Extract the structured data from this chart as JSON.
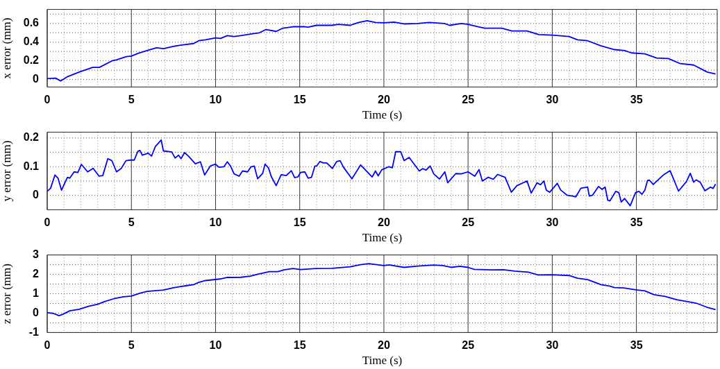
{
  "chart_data": [
    {
      "type": "line",
      "xlabel": "Time (s)",
      "ylabel": "x error (mm)",
      "color": "#0000ff",
      "grid": true,
      "xlim": [
        0,
        39.8
      ],
      "ylim": [
        -0.08,
        0.75
      ],
      "xticks": [
        0,
        {
          "value": 1,
          "label": null
        },
        {
          "value": 2,
          "label": null
        },
        {
          "value": 3,
          "label": null
        },
        {
          "value": 4,
          "label": null
        },
        5,
        {
          "value": 6,
          "label": null
        },
        {
          "value": 7,
          "label": null
        },
        {
          "value": 8,
          "label": null
        },
        {
          "value": 9,
          "label": null
        },
        10,
        {
          "value": 11,
          "label": null
        },
        {
          "value": 12,
          "label": null
        },
        {
          "value": 13,
          "label": null
        },
        {
          "value": 14,
          "label": null
        },
        15,
        {
          "value": 16,
          "label": null
        },
        {
          "value": 17,
          "label": null
        },
        {
          "value": 18,
          "label": null
        },
        {
          "value": 19,
          "label": null
        },
        20,
        {
          "value": 21,
          "label": null
        },
        {
          "value": 22,
          "label": null
        },
        {
          "value": 23,
          "label": null
        },
        {
          "value": 24,
          "label": null
        },
        25,
        {
          "value": 26,
          "label": null
        },
        {
          "value": 27,
          "label": null
        },
        {
          "value": 28,
          "label": null
        },
        {
          "value": 29,
          "label": null
        },
        30,
        {
          "value": 31,
          "label": null
        },
        {
          "value": 32,
          "label": null
        },
        {
          "value": 33,
          "label": null
        },
        {
          "value": 34,
          "label": null
        },
        35,
        {
          "value": 36,
          "label": null
        },
        {
          "value": 37,
          "label": null
        },
        {
          "value": 38,
          "label": null
        },
        {
          "value": 39,
          "label": null
        }
      ],
      "yticks": [
        0,
        {
          "value": 0.1,
          "label": null
        },
        0.2,
        {
          "value": 0.3,
          "label": null
        },
        0.4,
        {
          "value": 0.5,
          "label": null
        },
        0.6,
        {
          "value": 0.7,
          "label": null
        }
      ],
      "x": [
        0,
        0.5,
        0.8,
        1.2,
        1.9,
        2.7,
        3.1,
        3.85,
        4.1,
        4.7,
        5,
        5.4,
        6.1,
        6.5,
        6.9,
        7.5,
        8,
        8.7,
        9,
        9.4,
        10,
        10.3,
        10.7,
        11.1,
        11.5,
        12.2,
        12.6,
        13,
        13.6,
        14,
        14.6,
        15.3,
        15.5,
        16,
        16.9,
        17.3,
        18,
        18.5,
        19,
        19.5,
        20,
        20.6,
        21.2,
        22,
        22.7,
        23.6,
        23.9,
        24.6,
        25,
        25.6,
        26,
        27,
        27.6,
        28.5,
        29.2,
        30,
        31,
        31.5,
        32.1,
        32.9,
        33.7,
        34.3,
        34.7,
        35.5,
        36.2,
        36.9,
        37.6,
        38.4,
        39.2,
        39.7
      ],
      "values": [
        0.01,
        0.015,
        -0.015,
        0.03,
        0.08,
        0.13,
        0.13,
        0.2,
        0.21,
        0.245,
        0.25,
        0.28,
        0.32,
        0.34,
        0.33,
        0.355,
        0.37,
        0.385,
        0.415,
        0.425,
        0.445,
        0.44,
        0.47,
        0.46,
        0.47,
        0.49,
        0.5,
        0.535,
        0.515,
        0.55,
        0.565,
        0.565,
        0.56,
        0.58,
        0.58,
        0.59,
        0.58,
        0.61,
        0.63,
        0.61,
        0.607,
        0.615,
        0.595,
        0.6,
        0.61,
        0.6,
        0.58,
        0.6,
        0.59,
        0.565,
        0.55,
        0.55,
        0.52,
        0.52,
        0.48,
        0.475,
        0.46,
        0.425,
        0.415,
        0.36,
        0.32,
        0.31,
        0.285,
        0.275,
        0.23,
        0.225,
        0.17,
        0.155,
        0.08,
        0.06
      ]
    },
    {
      "type": "line",
      "xlabel": "Time (s)",
      "ylabel": "y error (mm)",
      "color": "#0000ff",
      "grid": true,
      "xlim": [
        0,
        39.8
      ],
      "ylim": [
        -0.05,
        0.22
      ],
      "xticks": [
        0,
        {
          "value": 1,
          "label": null
        },
        {
          "value": 2,
          "label": null
        },
        {
          "value": 3,
          "label": null
        },
        {
          "value": 4,
          "label": null
        },
        5,
        {
          "value": 6,
          "label": null
        },
        {
          "value": 7,
          "label": null
        },
        {
          "value": 8,
          "label": null
        },
        {
          "value": 9,
          "label": null
        },
        10,
        {
          "value": 11,
          "label": null
        },
        {
          "value": 12,
          "label": null
        },
        {
          "value": 13,
          "label": null
        },
        {
          "value": 14,
          "label": null
        },
        15,
        {
          "value": 16,
          "label": null
        },
        {
          "value": 17,
          "label": null
        },
        {
          "value": 18,
          "label": null
        },
        {
          "value": 19,
          "label": null
        },
        20,
        {
          "value": 21,
          "label": null
        },
        {
          "value": 22,
          "label": null
        },
        {
          "value": 23,
          "label": null
        },
        {
          "value": 24,
          "label": null
        },
        25,
        {
          "value": 26,
          "label": null
        },
        {
          "value": 27,
          "label": null
        },
        {
          "value": 28,
          "label": null
        },
        {
          "value": 29,
          "label": null
        },
        30,
        {
          "value": 31,
          "label": null
        },
        {
          "value": 32,
          "label": null
        },
        {
          "value": 33,
          "label": null
        },
        {
          "value": 34,
          "label": null
        },
        35,
        {
          "value": 36,
          "label": null
        },
        {
          "value": 37,
          "label": null
        },
        {
          "value": 38,
          "label": null
        },
        {
          "value": 39,
          "label": null
        }
      ],
      "yticks": [
        0,
        {
          "value": 0.05,
          "label": null
        },
        0.1,
        {
          "value": 0.15,
          "label": null
        },
        0.2
      ],
      "x": [
        0,
        0.2,
        0.46,
        0.64,
        0.85,
        1.2,
        1.34,
        1.6,
        1.82,
        2.03,
        2.4,
        2.73,
        3.08,
        3.3,
        3.6,
        3.84,
        4.12,
        4.4,
        4.68,
        4.96,
        5.17,
        5.38,
        5.5,
        5.65,
        6,
        6.2,
        6.42,
        6.77,
        6.9,
        7.4,
        7.6,
        7.8,
        7.95,
        8.16,
        8.4,
        8.8,
        9.1,
        9.35,
        9.7,
        10,
        10.2,
        10.5,
        10.7,
        10.9,
        11.1,
        11.4,
        11.6,
        11.9,
        12.1,
        12.3,
        12.5,
        12.8,
        12.94,
        13.15,
        13.3,
        13.6,
        13.9,
        14.2,
        14.5,
        14.7,
        14.9,
        15.05,
        15.3,
        15.5,
        15.7,
        15.9,
        16,
        16.2,
        16.4,
        16.6,
        16.94,
        17.2,
        17.4,
        17.6,
        18.1,
        18.62,
        19.3,
        19.5,
        19.66,
        19.87,
        20.3,
        20.5,
        20.7,
        21,
        21.2,
        21.5,
        22.1,
        22.3,
        22.5,
        22.75,
        22.96,
        23.3,
        23.62,
        23.79,
        24.27,
        24.6,
        25,
        25.4,
        25.65,
        25.85,
        26.2,
        26.5,
        26.75,
        27.2,
        27.57,
        27.9,
        28.5,
        28.75,
        29.1,
        29.3,
        29.5,
        29.65,
        29.85,
        30.3,
        30.5,
        30.87,
        31.2,
        31.4,
        31.7,
        32.1,
        32.2,
        32.4,
        32.75,
        32.96,
        33.14,
        33.3,
        33.43,
        33.77,
        33.95,
        34.1,
        34.3,
        34.63,
        34.95,
        35.15,
        35.33,
        35.5,
        35.66,
        35.77,
        36,
        36.6,
        37,
        37.5,
        37.97,
        38.2,
        38.4,
        38.55,
        38.8,
        39.07,
        39.4,
        39.55,
        39.7
      ],
      "values": [
        0.014,
        0.025,
        0.071,
        0.06,
        0.018,
        0.063,
        0.06,
        0.082,
        0.08,
        0.108,
        0.082,
        0.094,
        0.067,
        0.069,
        0.128,
        0.121,
        0.082,
        0.094,
        0.121,
        0.123,
        0.123,
        0.153,
        0.157,
        0.14,
        0.147,
        0.137,
        0.17,
        0.193,
        0.155,
        0.151,
        0.13,
        0.14,
        0.128,
        0.149,
        0.136,
        0.11,
        0.117,
        0.071,
        0.103,
        0.109,
        0.098,
        0.1,
        0.117,
        0.101,
        0.075,
        0.067,
        0.085,
        0.082,
        0.099,
        0.102,
        0.058,
        0.077,
        0.109,
        0.095,
        0.067,
        0.034,
        0.072,
        0.069,
        0.086,
        0.062,
        0.065,
        0.08,
        0.082,
        0.06,
        0.063,
        0.102,
        0.102,
        0.118,
        0.113,
        0.113,
        0.094,
        0.118,
        0.121,
        0.098,
        0.058,
        0.106,
        0.064,
        0.085,
        0.068,
        0.089,
        0.1,
        0.096,
        0.152,
        0.152,
        0.121,
        0.132,
        0.085,
        0.093,
        0.088,
        0.102,
        0.075,
        0.057,
        0.082,
        0.044,
        0.076,
        0.075,
        0.082,
        0.067,
        0.09,
        0.05,
        0.063,
        0.056,
        0.073,
        0.063,
        0.011,
        0.034,
        0.05,
        0.008,
        0.044,
        0.037,
        0.05,
        0.018,
        0.011,
        0.042,
        0.019,
        0.001,
        -0.002,
        -0.005,
        0.025,
        0.029,
        -0.002,
        0.001,
        0.031,
        0.021,
        0.029,
        -0.017,
        -0.019,
        0.014,
        0.01,
        -0.023,
        -0.011,
        -0.036,
        0.01,
        0.014,
        0.004,
        0.018,
        0.052,
        0.053,
        0.038,
        0.071,
        0.086,
        0.015,
        0.048,
        0.077,
        0.046,
        0.054,
        0.045,
        0.016,
        0.029,
        0.024,
        0.039
      ]
    },
    {
      "type": "line",
      "xlabel": "Time (s)",
      "ylabel": "z error (mm)",
      "color": "#0000ff",
      "grid": true,
      "xlim": [
        0,
        39.8
      ],
      "ylim": [
        -1,
        3
      ],
      "xticks": [
        0,
        {
          "value": 1,
          "label": null
        },
        {
          "value": 2,
          "label": null
        },
        {
          "value": 3,
          "label": null
        },
        {
          "value": 4,
          "label": null
        },
        5,
        {
          "value": 6,
          "label": null
        },
        {
          "value": 7,
          "label": null
        },
        {
          "value": 8,
          "label": null
        },
        {
          "value": 9,
          "label": null
        },
        10,
        {
          "value": 11,
          "label": null
        },
        {
          "value": 12,
          "label": null
        },
        {
          "value": 13,
          "label": null
        },
        {
          "value": 14,
          "label": null
        },
        15,
        {
          "value": 16,
          "label": null
        },
        {
          "value": 17,
          "label": null
        },
        {
          "value": 18,
          "label": null
        },
        {
          "value": 19,
          "label": null
        },
        20,
        {
          "value": 21,
          "label": null
        },
        {
          "value": 22,
          "label": null
        },
        {
          "value": 23,
          "label": null
        },
        {
          "value": 24,
          "label": null
        },
        25,
        {
          "value": 26,
          "label": null
        },
        {
          "value": 27,
          "label": null
        },
        {
          "value": 28,
          "label": null
        },
        {
          "value": 29,
          "label": null
        },
        30,
        {
          "value": 31,
          "label": null
        },
        {
          "value": 32,
          "label": null
        },
        {
          "value": 33,
          "label": null
        },
        {
          "value": 34,
          "label": null
        },
        35,
        {
          "value": 36,
          "label": null
        },
        {
          "value": 37,
          "label": null
        },
        {
          "value": 38,
          "label": null
        },
        {
          "value": 39,
          "label": null
        }
      ],
      "yticks": [
        -1,
        {
          "value": -0.5,
          "label": null
        },
        0,
        {
          "value": 0.5,
          "label": null
        },
        1,
        {
          "value": 1.5,
          "label": null
        },
        2,
        {
          "value": 2.5,
          "label": null
        },
        3
      ],
      "x": [
        0,
        0.36,
        0.7,
        0.9,
        1.34,
        1.9,
        2.45,
        3,
        3.43,
        3.98,
        4.54,
        5,
        5.52,
        5.93,
        6.9,
        7.5,
        8.3,
        8.7,
        9,
        9.4,
        10.25,
        10.67,
        11.5,
        12.06,
        12.5,
        13.2,
        13.7,
        14.1,
        14.6,
        15.05,
        15.96,
        16.9,
        18,
        18.6,
        19.1,
        20,
        20.3,
        21.2,
        22,
        22.96,
        23.5,
        24,
        24.5,
        25,
        25.37,
        26.4,
        27.1,
        27.78,
        28.6,
        29.16,
        30,
        31,
        31.5,
        32.1,
        32.9,
        33.4,
        33.7,
        34.25,
        34.98,
        35.5,
        36.05,
        36.7,
        37.4,
        38.1,
        38.6,
        39.2,
        39.7
      ],
      "values": [
        0.02,
        -0.01,
        -0.13,
        -0.07,
        0.12,
        0.2,
        0.35,
        0.46,
        0.6,
        0.75,
        0.84,
        0.88,
        1.03,
        1.12,
        1.19,
        1.31,
        1.42,
        1.47,
        1.59,
        1.68,
        1.76,
        1.84,
        1.85,
        1.91,
        2.01,
        2.14,
        2.14,
        2.24,
        2.3,
        2.25,
        2.3,
        2.31,
        2.39,
        2.5,
        2.55,
        2.45,
        2.49,
        2.36,
        2.43,
        2.48,
        2.45,
        2.36,
        2.42,
        2.36,
        2.26,
        2.23,
        2.24,
        2.17,
        2.11,
        1.97,
        1.98,
        1.94,
        1.8,
        1.73,
        1.47,
        1.4,
        1.32,
        1.3,
        1.2,
        1.15,
        0.95,
        0.86,
        0.69,
        0.58,
        0.5,
        0.3,
        0.18
      ]
    }
  ]
}
